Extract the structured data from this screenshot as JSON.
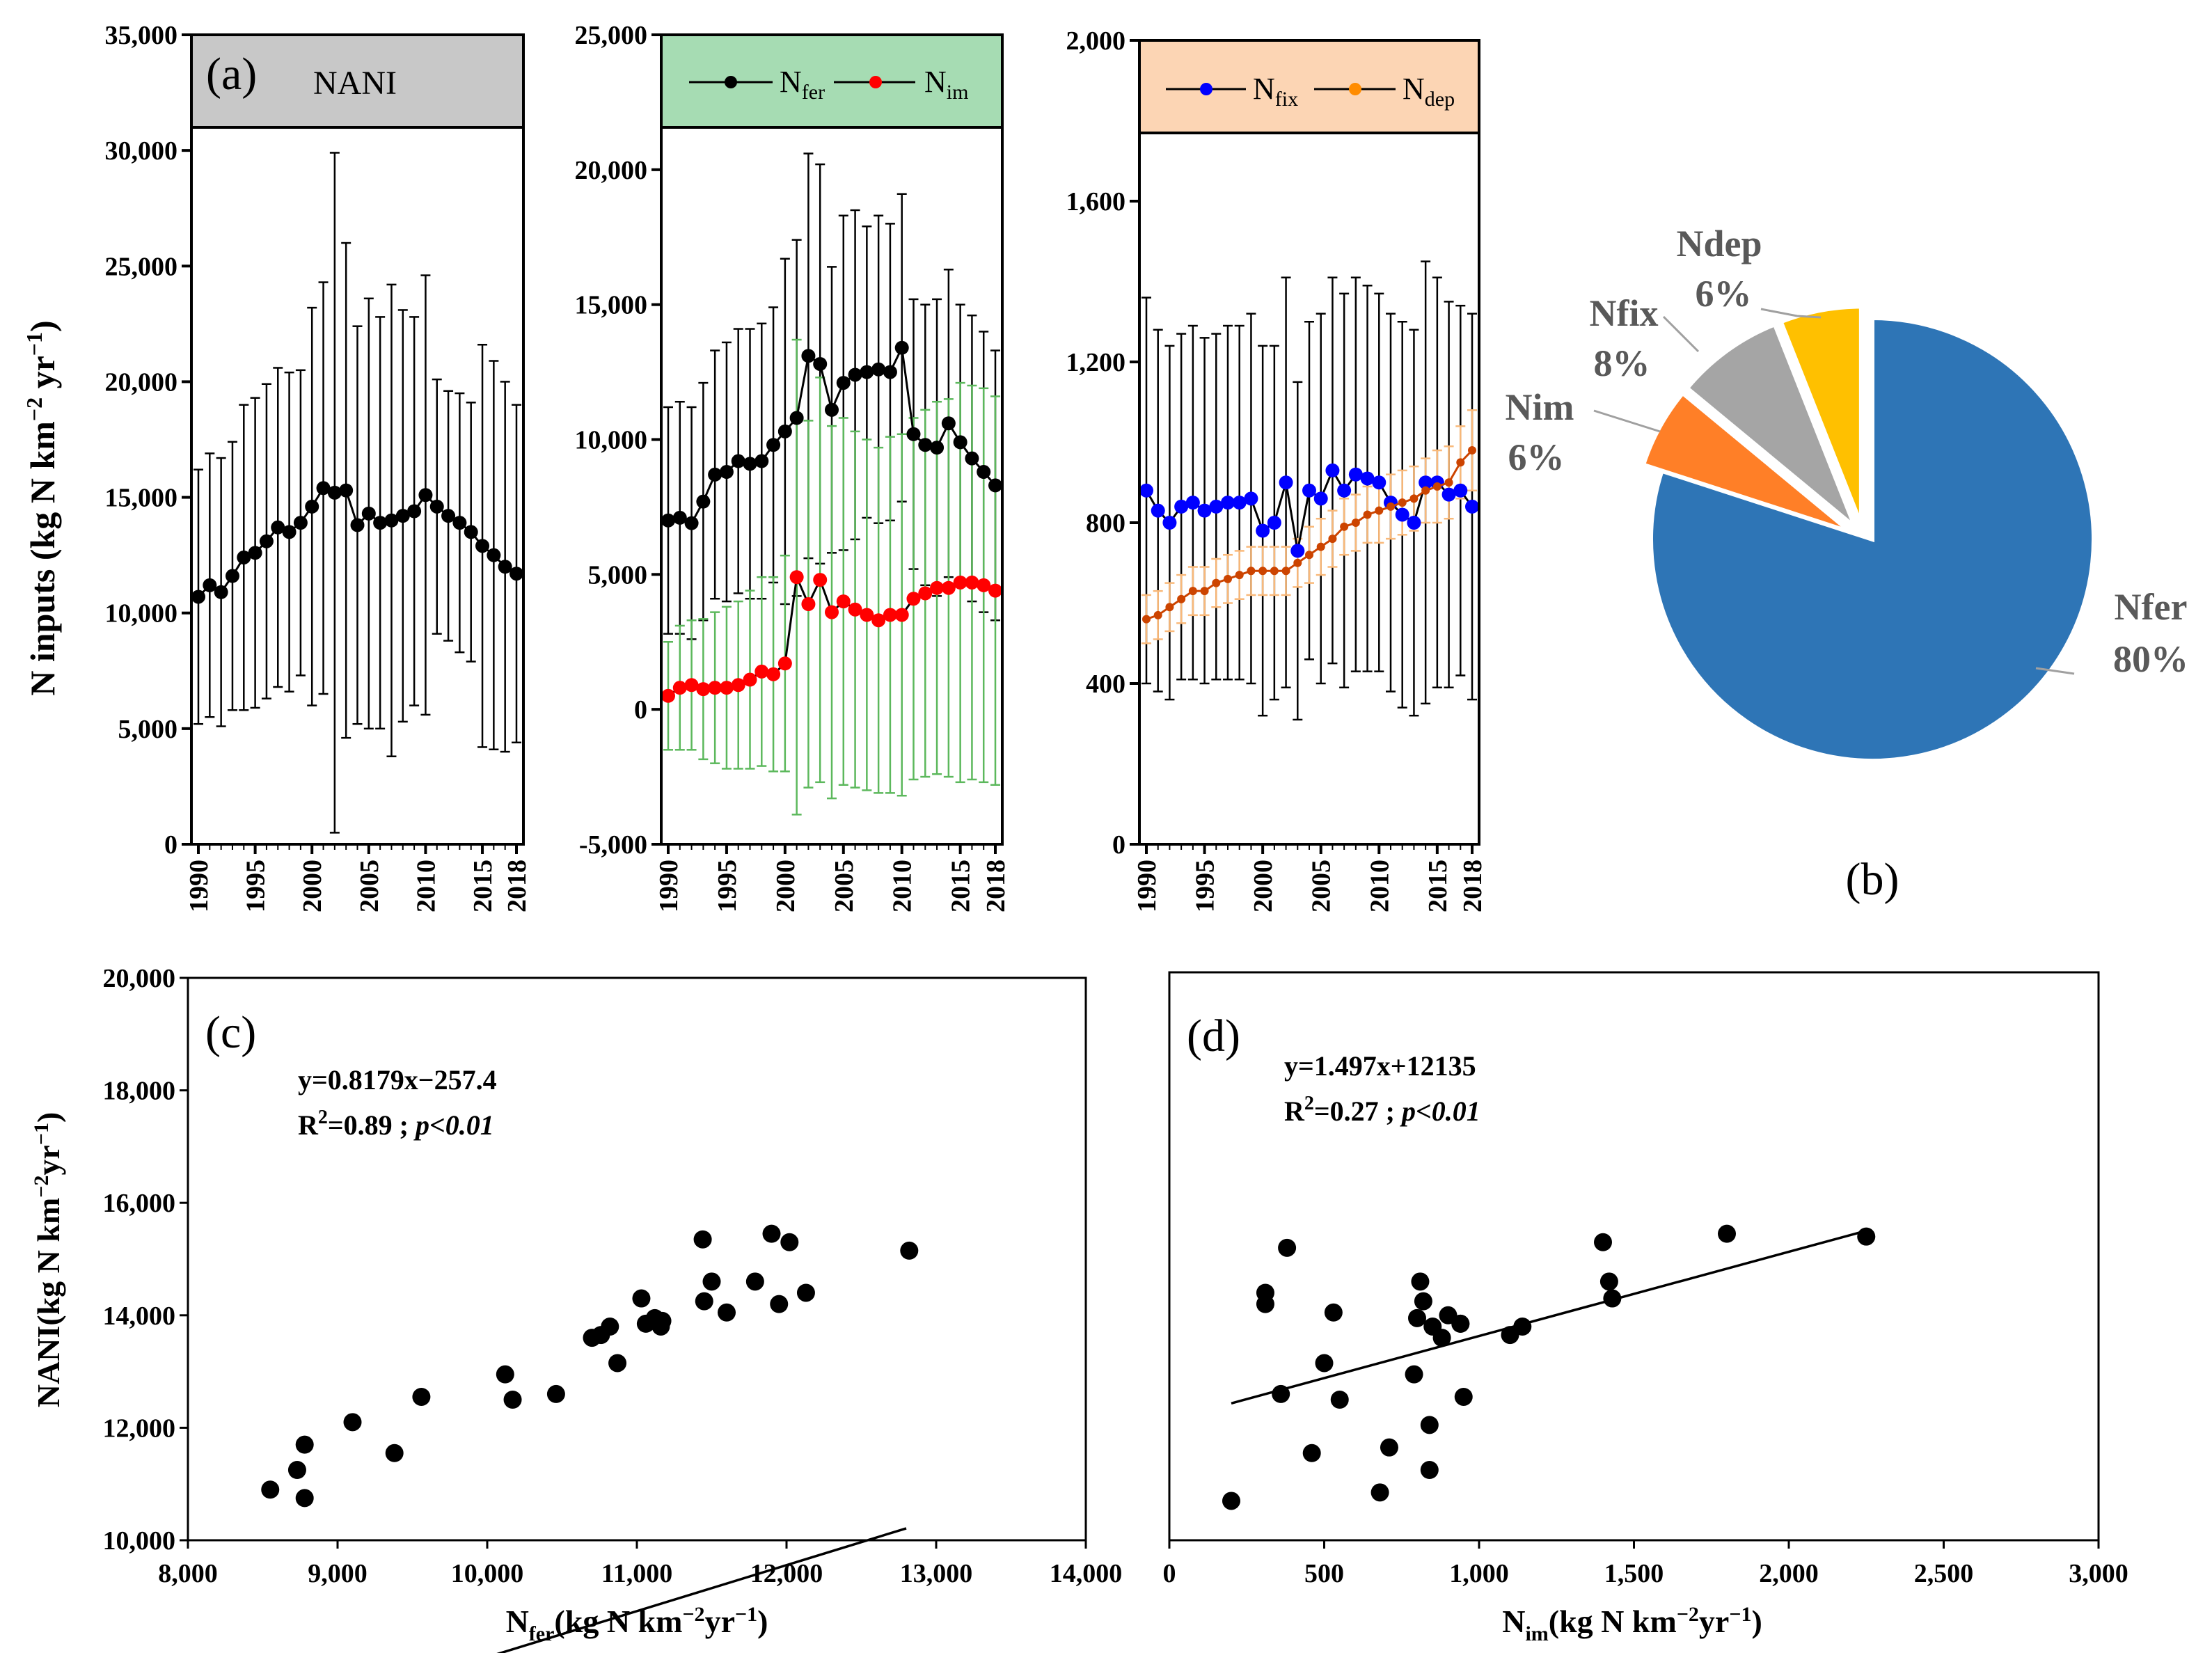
{
  "chart_data": [
    {
      "id": "a1",
      "type": "line",
      "panel_label": "(a)",
      "header": "NANI",
      "header_color": "#c8c8c8",
      "ylabel_main": "N inputs (kg N km",
      "ylabel_sup1": "−2",
      "ylabel_mid": " yr",
      "ylabel_sup2": "−1",
      "ylabel_end": ")",
      "ylim": [
        0,
        35000
      ],
      "yticks": [
        0,
        5000,
        10000,
        15000,
        20000,
        25000,
        30000,
        35000
      ],
      "ytick_labels": [
        "0",
        "5,000",
        "10,000",
        "15,000",
        "20,000",
        "25,000",
        "30,000",
        "35,000"
      ],
      "xlim": [
        1990,
        2018
      ],
      "xticks": [
        1990,
        1995,
        2000,
        2005,
        2010,
        2015,
        2018
      ],
      "xtick_labels": [
        "1990",
        "1995",
        "2000",
        "2005",
        "2010",
        "2015",
        "2018"
      ],
      "series": [
        {
          "color": "#000000",
          "errbar_color": "#000000",
          "x": [
            1990,
            1991,
            1992,
            1993,
            1994,
            1995,
            1996,
            1997,
            1998,
            1999,
            2000,
            2001,
            2002,
            2003,
            2004,
            2005,
            2006,
            2007,
            2008,
            2009,
            2010,
            2011,
            2012,
            2013,
            2014,
            2015,
            2016,
            2017,
            2018
          ],
          "y": [
            10700,
            11200,
            10900,
            11600,
            12400,
            12600,
            13100,
            13700,
            13500,
            13900,
            14600,
            15400,
            15200,
            15300,
            13800,
            14300,
            13900,
            14000,
            14200,
            14400,
            15100,
            14600,
            14200,
            13900,
            13500,
            12900,
            12500,
            12000,
            11700
          ],
          "err": [
            5500,
            5700,
            5800,
            5800,
            6600,
            6700,
            6800,
            6900,
            6900,
            6600,
            8600,
            8900,
            14700,
            10700,
            8600,
            9300,
            8900,
            10200,
            8900,
            8400,
            9500,
            5500,
            5400,
            5600,
            5600,
            8700,
            8400,
            8000,
            7300
          ]
        }
      ]
    },
    {
      "id": "a2",
      "type": "line",
      "header_color": "#a6dcb3",
      "legend": [
        {
          "base": "N",
          "sub": "fer",
          "color": "#000000"
        },
        {
          "base": "N",
          "sub": "im",
          "color": "#ff0000"
        }
      ],
      "ylim": [
        -5000,
        25000
      ],
      "yticks": [
        -5000,
        0,
        5000,
        10000,
        15000,
        20000,
        25000
      ],
      "ytick_labels": [
        "-5,000",
        "0",
        "5,000",
        "10,000",
        "15,000",
        "20,000",
        "25,000"
      ],
      "xlim": [
        1990,
        2018
      ],
      "xticks": [
        1990,
        1995,
        2000,
        2005,
        2010,
        2015,
        2018
      ],
      "xtick_labels": [
        "1990",
        "1995",
        "2000",
        "2005",
        "2010",
        "2015",
        "2018"
      ],
      "series": [
        {
          "name": "Nfer",
          "color": "#000000",
          "errbar_color": "#000000",
          "x": [
            1990,
            1991,
            1992,
            1993,
            1994,
            1995,
            1996,
            1997,
            1998,
            1999,
            2000,
            2001,
            2002,
            2003,
            2004,
            2005,
            2006,
            2007,
            2008,
            2009,
            2010,
            2011,
            2012,
            2013,
            2014,
            2015,
            2016,
            2017,
            2018
          ],
          "y": [
            7000,
            7100,
            6900,
            7700,
            8700,
            8800,
            9200,
            9100,
            9200,
            9800,
            10300,
            10800,
            13100,
            12800,
            11100,
            12100,
            12400,
            12500,
            12600,
            12500,
            13400,
            10200,
            9800,
            9700,
            10600,
            9900,
            9300,
            8800,
            8300
          ],
          "err": [
            4200,
            4300,
            4300,
            4400,
            4600,
            4800,
            4900,
            5000,
            5100,
            5100,
            6400,
            6600,
            7500,
            7400,
            5300,
            6200,
            6100,
            5400,
            5700,
            5500,
            5700,
            5000,
            5200,
            5500,
            5700,
            5100,
            5300,
            5200,
            5000
          ]
        },
        {
          "name": "Nim",
          "color": "#ff0000",
          "errbar_color": "#5cb85c",
          "x": [
            1990,
            1991,
            1992,
            1993,
            1994,
            1995,
            1996,
            1997,
            1998,
            1999,
            2000,
            2001,
            2002,
            2003,
            2004,
            2005,
            2006,
            2007,
            2008,
            2009,
            2010,
            2011,
            2012,
            2013,
            2014,
            2015,
            2016,
            2017,
            2018
          ],
          "y": [
            500,
            800,
            900,
            750,
            800,
            800,
            900,
            1100,
            1400,
            1300,
            1700,
            4900,
            3900,
            4800,
            3600,
            4000,
            3700,
            3500,
            3300,
            3500,
            3500,
            4100,
            4300,
            4500,
            4500,
            4700,
            4700,
            4600,
            4400
          ],
          "err": [
            2000,
            2300,
            2400,
            2600,
            2800,
            3000,
            3100,
            3300,
            3500,
            3600,
            4000,
            8800,
            6800,
            7500,
            6900,
            6800,
            6600,
            6500,
            6400,
            6600,
            6700,
            6700,
            6800,
            6900,
            7000,
            7400,
            7300,
            7300,
            7200
          ]
        }
      ]
    },
    {
      "id": "a3",
      "type": "line",
      "header_color": "#fcd5b4",
      "legend": [
        {
          "base": "N",
          "sub": "fix",
          "color": "#0000ff"
        },
        {
          "base": "N",
          "sub": "dep",
          "color": "#ff8c00"
        }
      ],
      "ylim": [
        0,
        2000
      ],
      "yticks": [
        0,
        400,
        800,
        1200,
        1600,
        2000
      ],
      "ytick_labels": [
        "0",
        "400",
        "800",
        "1,200",
        "1,600",
        "2,000"
      ],
      "xlim": [
        1990,
        2018
      ],
      "xticks": [
        1990,
        1995,
        2000,
        2005,
        2010,
        2015,
        2018
      ],
      "xtick_labels": [
        "1990",
        "1995",
        "2000",
        "2005",
        "2010",
        "2015",
        "2018"
      ],
      "series": [
        {
          "name": "Nfix",
          "color": "#0000ff",
          "errbar_color": "#000000",
          "x": [
            1990,
            1991,
            1992,
            1993,
            1994,
            1995,
            1996,
            1997,
            1998,
            1999,
            2000,
            2001,
            2002,
            2003,
            2004,
            2005,
            2006,
            2007,
            2008,
            2009,
            2010,
            2011,
            2012,
            2013,
            2014,
            2015,
            2016,
            2017,
            2018
          ],
          "y": [
            880,
            830,
            800,
            840,
            850,
            830,
            840,
            850,
            850,
            860,
            780,
            800,
            900,
            730,
            880,
            860,
            930,
            880,
            920,
            910,
            900,
            850,
            820,
            800,
            900,
            900,
            870,
            880,
            840
          ],
          "err": [
            480,
            450,
            440,
            430,
            440,
            430,
            430,
            440,
            440,
            460,
            460,
            440,
            510,
            420,
            420,
            460,
            480,
            490,
            490,
            480,
            470,
            470,
            480,
            480,
            550,
            510,
            480,
            460,
            480
          ]
        },
        {
          "name": "Ndep",
          "color": "#cc4400",
          "errbar_color": "#f9b97a",
          "x": [
            1990,
            1991,
            1992,
            1993,
            1994,
            1995,
            1996,
            1997,
            1998,
            1999,
            2000,
            2001,
            2002,
            2003,
            2004,
            2005,
            2006,
            2007,
            2008,
            2009,
            2010,
            2011,
            2012,
            2013,
            2014,
            2015,
            2016,
            2017,
            2018
          ],
          "y": [
            560,
            570,
            590,
            610,
            630,
            630,
            650,
            660,
            670,
            680,
            680,
            680,
            680,
            700,
            720,
            740,
            760,
            790,
            800,
            820,
            830,
            840,
            850,
            860,
            880,
            890,
            900,
            950,
            980
          ],
          "err": [
            60,
            60,
            60,
            60,
            60,
            60,
            60,
            60,
            60,
            60,
            60,
            60,
            60,
            60,
            70,
            70,
            70,
            70,
            70,
            70,
            80,
            80,
            80,
            80,
            80,
            90,
            90,
            90,
            100
          ]
        }
      ]
    },
    {
      "id": "b",
      "type": "pie",
      "panel_label": "(b)",
      "slices": [
        {
          "name": "Nfer",
          "pct_label": "80%",
          "value": 80,
          "color": "#2e75b6",
          "dark": "#1f4e79"
        },
        {
          "name": "Nim",
          "pct_label": "6%",
          "value": 6,
          "color": "#ff7f27",
          "dark": "#c55a11"
        },
        {
          "name": "Nfix",
          "pct_label": "8%",
          "value": 8,
          "color": "#a5a5a5",
          "dark": "#7f7f7f"
        },
        {
          "name": "Ndep",
          "pct_label": "6%",
          "value": 6,
          "color": "#ffc000",
          "dark": "#bf9000"
        }
      ]
    },
    {
      "id": "c",
      "type": "scatter",
      "panel_label": "(c)",
      "equation": "y=0.8179x−257.4",
      "r2_prefix": "R",
      "r2_sup": "2",
      "r2_value": "=0.89 ; ",
      "p_text": "p<0.01",
      "ylabel": "NANI(kg N km",
      "ylabel_sup1": "−2",
      "ylabel_mid": "yr",
      "ylabel_sup2": "−1",
      "ylabel_end": ")",
      "xlabel_base": "N",
      "xlabel_sub": "fer",
      "xlabel_rest": "(kg N km",
      "xlabel_sup1": "−2",
      "xlabel_mid": "yr",
      "xlabel_sup2": "−1",
      "xlabel_end": ")",
      "xlim": [
        8000,
        14000
      ],
      "ylim": [
        10000,
        20000
      ],
      "xticks": [
        8000,
        9000,
        10000,
        11000,
        12000,
        13000,
        14000
      ],
      "xtick_labels": [
        "8,000",
        "9,000",
        "10,000",
        "11,000",
        "12,000",
        "13,000",
        "14,000"
      ],
      "yticks": [
        10000,
        12000,
        14000,
        16000,
        18000,
        20000
      ],
      "ytick_labels": [
        "10,000",
        "12,000",
        "14,000",
        "16,000",
        "18,000",
        "20,000"
      ],
      "fit": {
        "slope": 0.8179,
        "intercept": -257.4,
        "x_range": [
          8550,
          12800
        ]
      },
      "points": {
        "x": [
          8550,
          8730,
          8780,
          8780,
          9100,
          9380,
          9560,
          10120,
          10170,
          10460,
          10700,
          10760,
          10820,
          10870,
          11030,
          11060,
          11120,
          11160,
          11170,
          11440,
          11450,
          11500,
          11600,
          11790,
          11900,
          11950,
          12020,
          12130,
          12820
        ],
        "y": [
          10900,
          11250,
          11700,
          10750,
          12100,
          11550,
          12550,
          12950,
          12500,
          12600,
          13600,
          13650,
          13800,
          13150,
          14300,
          13850,
          13950,
          13800,
          13900,
          15350,
          14250,
          14600,
          14050,
          14600,
          15450,
          14200,
          15300,
          14400,
          15150
        ]
      }
    },
    {
      "id": "d",
      "type": "scatter",
      "panel_label": "(d)",
      "equation": "y=1.497x+12135",
      "r2_prefix": "R",
      "r2_sup": "2",
      "r2_value": "=0.27 ; ",
      "p_text": "p<0.01",
      "xlabel_base": "N",
      "xlabel_sub": "im",
      "xlabel_rest": "(kg N km",
      "xlabel_sup1": "−2",
      "xlabel_mid": "yr",
      "xlabel_sup2": "−1",
      "xlabel_end": ")",
      "xlim": [
        0,
        3000
      ],
      "ylim": [
        10000,
        20000
      ],
      "xticks": [
        0,
        500,
        1000,
        1500,
        2000,
        2500,
        3000
      ],
      "xtick_labels": [
        "0",
        "500",
        "1,000",
        "1,500",
        "2,000",
        "2,500",
        "3,000"
      ],
      "fit": {
        "slope": 1.497,
        "intercept": 12135,
        "x_range": [
          200,
          2250
        ]
      },
      "points": {
        "x": [
          200,
          310,
          310,
          360,
          380,
          460,
          500,
          530,
          550,
          680,
          710,
          790,
          800,
          810,
          820,
          840,
          840,
          850,
          880,
          900,
          940,
          940,
          950,
          1100,
          1140,
          1400,
          1420,
          1430,
          1800,
          2250
        ],
        "y": [
          10700,
          14400,
          14200,
          12600,
          15200,
          11550,
          13150,
          14050,
          12500,
          10850,
          11650,
          12950,
          13950,
          14600,
          14250,
          12050,
          11250,
          13800,
          13600,
          14000,
          13850,
          13850,
          12550,
          13650,
          13800,
          15300,
          14600,
          14300,
          15450,
          15400
        ]
      }
    }
  ]
}
